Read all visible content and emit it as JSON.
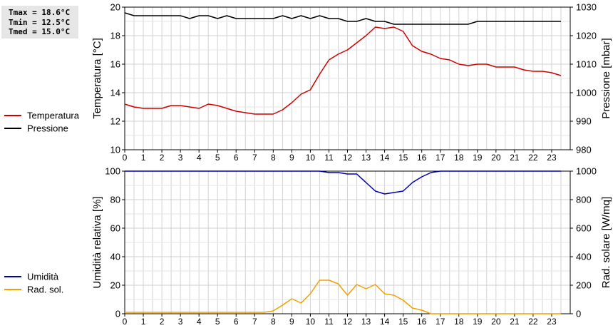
{
  "stats": {
    "tmax": "Tmax = 18.6°C",
    "tmin": "Tmin = 12.5°C",
    "tmed": "Tmed = 15.0°C"
  },
  "chart_data": [
    {
      "type": "line",
      "xlim": [
        0,
        24
      ],
      "x_ticks": [
        0,
        1,
        2,
        3,
        4,
        5,
        6,
        7,
        8,
        9,
        10,
        11,
        12,
        13,
        14,
        15,
        16,
        17,
        18,
        19,
        20,
        21,
        22,
        23
      ],
      "y_left": {
        "label": "Temperatura [°C]",
        "lim": [
          10,
          20
        ],
        "ticks": [
          10,
          12,
          14,
          16,
          18,
          20
        ]
      },
      "y_right": {
        "label": "Pressione [mbar]",
        "lim": [
          980,
          1030
        ],
        "ticks": [
          980,
          990,
          1000,
          1010,
          1020,
          1030
        ]
      },
      "grid": true,
      "legend_position": "left",
      "series": [
        {
          "name": "Temperatura",
          "color": "#cc0000",
          "axis": "left",
          "x": [
            0,
            0.5,
            1,
            1.5,
            2,
            2.5,
            3,
            3.5,
            4,
            4.5,
            5,
            5.5,
            6,
            6.5,
            7,
            7.5,
            8,
            8.5,
            9,
            9.5,
            10,
            10.5,
            11,
            11.5,
            12,
            12.5,
            13,
            13.5,
            14,
            14.5,
            15,
            15.5,
            16,
            16.5,
            17,
            17.5,
            18,
            18.5,
            19,
            19.5,
            20,
            20.5,
            21,
            21.5,
            22,
            22.5,
            23,
            23.5
          ],
          "y": [
            13.2,
            13.0,
            12.9,
            12.9,
            12.9,
            13.1,
            13.1,
            13.0,
            12.9,
            13.2,
            13.1,
            12.9,
            12.7,
            12.6,
            12.5,
            12.5,
            12.5,
            12.8,
            13.3,
            13.9,
            14.2,
            15.3,
            16.3,
            16.7,
            17.0,
            17.5,
            18.0,
            18.6,
            18.5,
            18.6,
            18.3,
            17.3,
            16.9,
            16.7,
            16.4,
            16.3,
            16.0,
            15.9,
            16.0,
            16.0,
            15.8,
            15.8,
            15.8,
            15.6,
            15.5,
            15.5,
            15.4,
            15.2
          ]
        },
        {
          "name": "Pressione",
          "color": "#000000",
          "axis": "right",
          "x": [
            0,
            0.5,
            1,
            1.5,
            2,
            2.5,
            3,
            3.5,
            4,
            4.5,
            5,
            5.5,
            6,
            6.5,
            7,
            7.5,
            8,
            8.5,
            9,
            9.5,
            10,
            10.5,
            11,
            11.5,
            12,
            12.5,
            13,
            13.5,
            14,
            14.5,
            15,
            15.5,
            16,
            16.5,
            17,
            17.5,
            18,
            18.5,
            19,
            19.5,
            20,
            20.5,
            21,
            21.5,
            22,
            22.5,
            23,
            23.5
          ],
          "y": [
            1028,
            1027,
            1027,
            1027,
            1027,
            1027,
            1027,
            1026,
            1027,
            1027,
            1026,
            1027,
            1026,
            1026,
            1026,
            1026,
            1026,
            1027,
            1026,
            1027,
            1026,
            1027,
            1026,
            1026,
            1025,
            1025,
            1026,
            1025,
            1025,
            1024,
            1024,
            1024,
            1024,
            1024,
            1024,
            1024,
            1024,
            1024,
            1025,
            1025,
            1025,
            1025,
            1025,
            1025,
            1025,
            1025,
            1025,
            1025
          ]
        }
      ]
    },
    {
      "type": "line",
      "xlim": [
        0,
        24
      ],
      "x_ticks": [
        0,
        1,
        2,
        3,
        4,
        5,
        6,
        7,
        8,
        9,
        10,
        11,
        12,
        13,
        14,
        15,
        16,
        17,
        18,
        19,
        20,
        21,
        22,
        23
      ],
      "y_left": {
        "label": "Umidità relativa [%]",
        "lim": [
          0,
          100
        ],
        "ticks": [
          0,
          20,
          40,
          60,
          80,
          100
        ]
      },
      "y_right": {
        "label": "Rad. solare [W/mq]",
        "lim": [
          0,
          1000
        ],
        "ticks": [
          0,
          200,
          400,
          600,
          800,
          1000
        ]
      },
      "grid": true,
      "legend_position": "left",
      "series": [
        {
          "name": "Umidità",
          "color": "#0000aa",
          "axis": "left",
          "x": [
            0,
            0.5,
            1,
            1.5,
            2,
            2.5,
            3,
            3.5,
            4,
            4.5,
            5,
            5.5,
            6,
            6.5,
            7,
            7.5,
            8,
            8.5,
            9,
            9.5,
            10,
            10.5,
            11,
            11.5,
            12,
            12.5,
            13,
            13.5,
            14,
            14.5,
            15,
            15.5,
            16,
            16.5,
            17,
            17.5,
            18,
            18.5,
            19,
            19.5,
            20,
            20.5,
            21,
            21.5,
            22,
            22.5,
            23,
            23.5
          ],
          "y": [
            100,
            100,
            100,
            100,
            100,
            100,
            100,
            100,
            100,
            100,
            100,
            100,
            100,
            100,
            100,
            100,
            100,
            100,
            100,
            100,
            100,
            100,
            99,
            99,
            98,
            98,
            92,
            86,
            84,
            85,
            86,
            92,
            96,
            99,
            100,
            100,
            100,
            100,
            100,
            100,
            100,
            100,
            100,
            100,
            100,
            100,
            100,
            100
          ]
        },
        {
          "name": "Rad. sol.",
          "color": "#f0a000",
          "axis": "right",
          "x": [
            0,
            0.5,
            1,
            1.5,
            2,
            2.5,
            3,
            3.5,
            4,
            4.5,
            5,
            5.5,
            6,
            6.5,
            7,
            7.5,
            8,
            8.5,
            9,
            9.5,
            10,
            10.5,
            11,
            11.5,
            12,
            12.5,
            13,
            13.5,
            14,
            14.5,
            15,
            15.5,
            16,
            16.5,
            17,
            17.5,
            18,
            18.5,
            19,
            19.5,
            20,
            20.5,
            21,
            21.5,
            22,
            22.5,
            23,
            23.5
          ],
          "y": [
            10,
            10,
            10,
            10,
            10,
            10,
            10,
            10,
            10,
            10,
            10,
            10,
            10,
            10,
            10,
            10,
            20,
            60,
            105,
            75,
            140,
            235,
            235,
            210,
            130,
            205,
            175,
            205,
            140,
            130,
            95,
            40,
            25,
            0,
            0,
            0,
            0,
            0,
            0,
            0,
            0,
            0,
            0,
            0,
            0,
            0,
            0,
            0
          ]
        }
      ]
    }
  ]
}
